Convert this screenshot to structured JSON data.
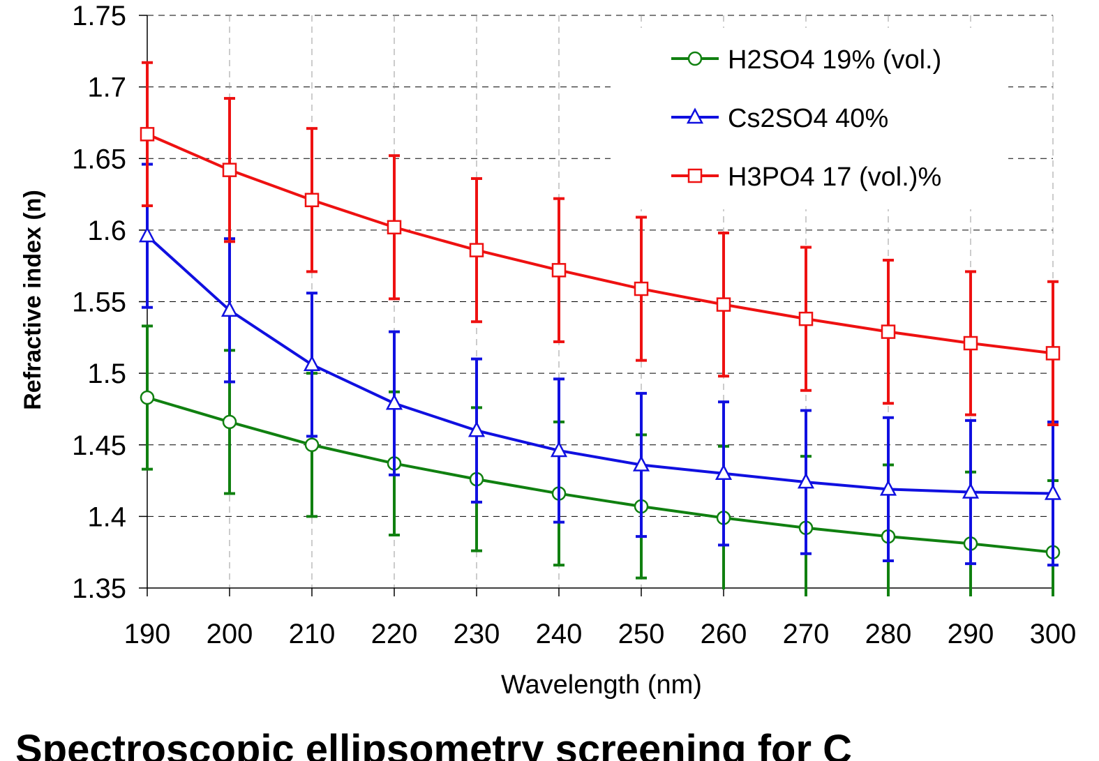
{
  "caption": "Spectroscopic ellipsometry screening for C",
  "chart_data": {
    "type": "line",
    "title": "",
    "xlabel": "Wavelength (nm)",
    "ylabel": "Refractive index (n)",
    "xlim": [
      190,
      300
    ],
    "ylim": [
      1.35,
      1.75
    ],
    "x_ticks": [
      "190",
      "200",
      "210",
      "220",
      "230",
      "240",
      "250",
      "260",
      "270",
      "280",
      "290",
      "300"
    ],
    "y_ticks": [
      "1.35",
      "1.4",
      "1.45",
      "1.5",
      "1.55",
      "1.6",
      "1.65",
      "1.7",
      "1.75"
    ],
    "grid": "dashed",
    "legend_position": "top-right",
    "error_bar": 0.05,
    "x": [
      190,
      200,
      210,
      220,
      230,
      240,
      250,
      260,
      270,
      280,
      290,
      300
    ],
    "series": [
      {
        "name": "H2SO4 19% (vol.)",
        "color": "#108010",
        "marker": "circle",
        "values": [
          1.483,
          1.466,
          1.45,
          1.437,
          1.426,
          1.416,
          1.407,
          1.399,
          1.392,
          1.386,
          1.381,
          1.375
        ]
      },
      {
        "name": "Cs2SO4 40%",
        "color": "#1010e0",
        "marker": "triangle",
        "values": [
          1.596,
          1.544,
          1.506,
          1.479,
          1.46,
          1.446,
          1.436,
          1.43,
          1.424,
          1.419,
          1.417,
          1.416
        ]
      },
      {
        "name": "H3PO4 17 (vol.)%",
        "color": "#ee1111",
        "marker": "square",
        "values": [
          1.667,
          1.642,
          1.621,
          1.602,
          1.586,
          1.572,
          1.559,
          1.548,
          1.538,
          1.529,
          1.521,
          1.514
        ]
      }
    ]
  }
}
